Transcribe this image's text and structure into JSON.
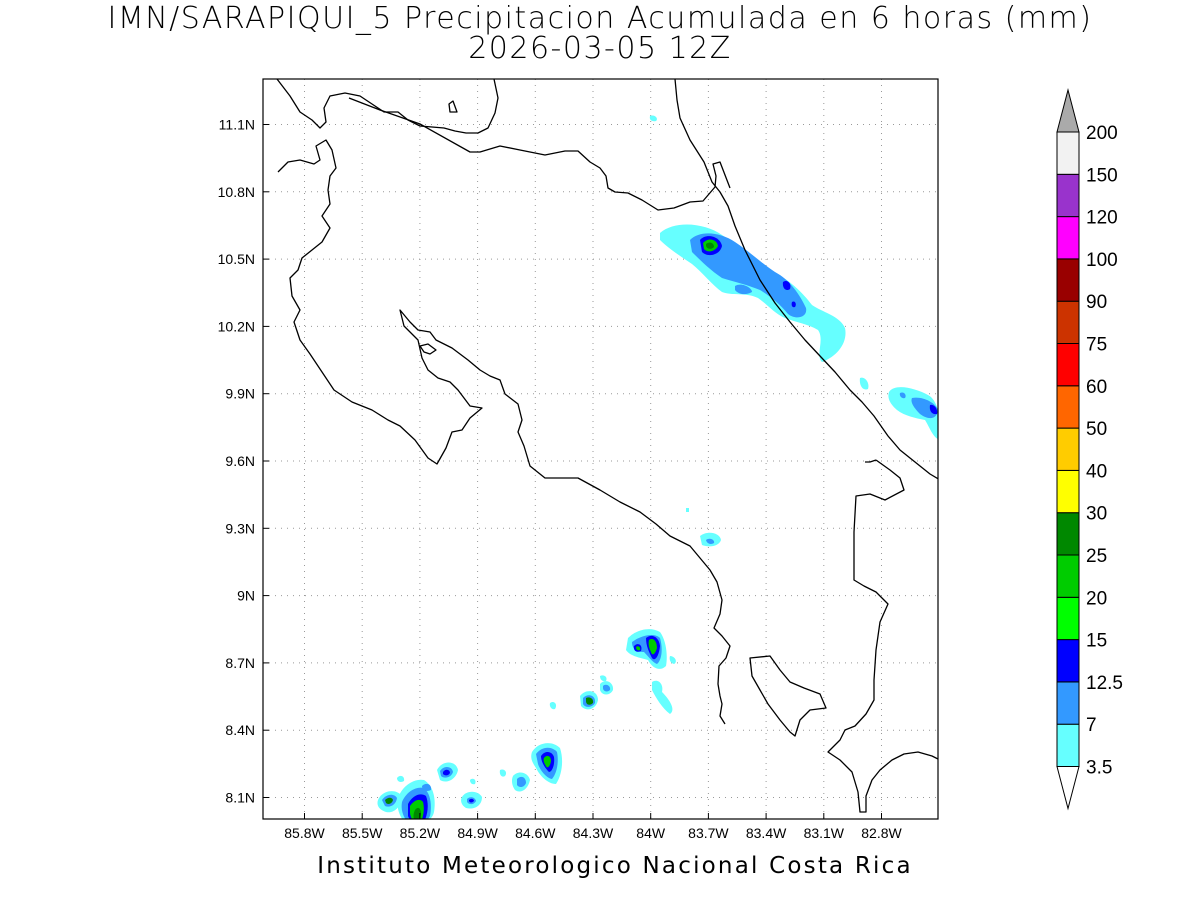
{
  "title": {
    "line1": "IMN/SARAPIQUI_5 Precipitacion Acumulada en 6 horas (mm)",
    "line2": "2026-03-05 12Z"
  },
  "credit": "Instituto Meteorologico Nacional Costa Rica",
  "axes": {
    "lon_ticks": [
      "85.8W",
      "85.5W",
      "85.2W",
      "84.9W",
      "84.6W",
      "84.3W",
      "84W",
      "83.7W",
      "83.4W",
      "83.1W",
      "82.8W"
    ],
    "lat_ticks": [
      "11.1N",
      "10.8N",
      "10.5N",
      "10.2N",
      "9.9N",
      "9.6N",
      "9.3N",
      "9N",
      "8.7N",
      "8.4N",
      "8.1N"
    ],
    "grid": "dotted"
  },
  "colorbar": {
    "labels": [
      "3.5",
      "7",
      "12.5",
      "15",
      "20",
      "25",
      "30",
      "40",
      "50",
      "60",
      "75",
      "90",
      "100",
      "120",
      "150",
      "200"
    ],
    "colors": [
      "#ffffff",
      "#66ffff",
      "#3399ff",
      "#0000ff",
      "#00ff00",
      "#00cc00",
      "#008800",
      "#ffff00",
      "#ffcc00",
      "#ff6600",
      "#ff0000",
      "#cc3300",
      "#990000",
      "#ff00ff",
      "#9933cc",
      "#f2f2f2",
      "#aaaaaa"
    ]
  }
}
